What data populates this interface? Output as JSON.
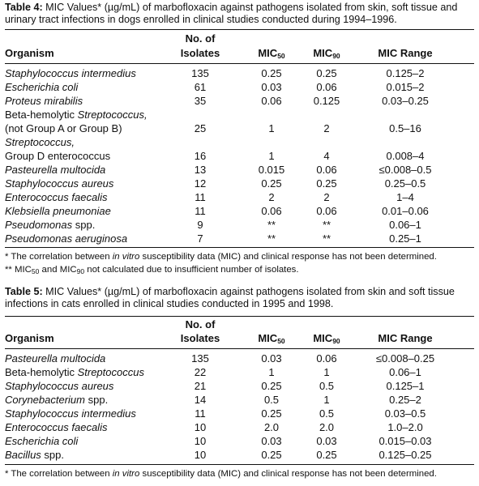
{
  "table4": {
    "label": "Table 4:",
    "caption_text": "MIC Values* (µg/mL) of marbofloxacin against pathogens isolated from skin, soft tissue and urinary tract infections in dogs enrolled in clinical studies conducted during 1994–1996.",
    "headers": {
      "organism": "Organism",
      "isolates_line1": "No. of",
      "isolates_line2": "Isolates",
      "mic": "MIC",
      "mic50_sub": "50",
      "mic90_sub": "90",
      "range": "MIC Range"
    },
    "rows": [
      {
        "organism": "Staphylococcus intermedius",
        "n": "135",
        "mic50": "0.25",
        "mic90": "0.25",
        "range": "0.125–2"
      },
      {
        "organism": "Escherichia coli",
        "n": "61",
        "mic50": "0.03",
        "mic90": "0.06",
        "range": "0.015–2"
      },
      {
        "organism": "Proteus mirabilis",
        "n": "35",
        "mic50": "0.06",
        "mic90": "0.125",
        "range": "0.03–0.25"
      },
      {
        "organism_line1_plain": "Beta-hemolytic ",
        "organism_line1_italic": "Streptococcus,",
        "organism_line2": "(not Group A or Group B)",
        "n": "25",
        "mic50": "1",
        "mic90": "2",
        "range": "0.5–16"
      },
      {
        "organism_line1_italic": "Streptococcus,",
        "organism_line2": "Group D enterococcus",
        "n": "16",
        "mic50": "1",
        "mic90": "4",
        "range": "0.008–4"
      },
      {
        "organism": "Pasteurella multocida",
        "n": "13",
        "mic50": "0.015",
        "mic90": "0.06",
        "range": "≤0.008–0.5"
      },
      {
        "organism": "Staphylococcus aureus",
        "n": "12",
        "mic50": "0.25",
        "mic90": "0.25",
        "range": "0.25–0.5"
      },
      {
        "organism": "Enterococcus faecalis",
        "n": "11",
        "mic50": "2",
        "mic90": "2",
        "range": "1–4"
      },
      {
        "organism": "Klebsiella pneumoniae",
        "n": "11",
        "mic50": "0.06",
        "mic90": "0.06",
        "range": "0.01–0.06"
      },
      {
        "organism_italic": "Pseudomonas",
        "organism_plain": " spp.",
        "n": "9",
        "mic50": "**",
        "mic90": "**",
        "range": "0.06–1"
      },
      {
        "organism": "Pseudomonas aeruginosa",
        "n": "7",
        "mic50": "**",
        "mic90": "**",
        "range": "0.25–1"
      }
    ],
    "note1_pre": "* The correlation between ",
    "note1_italic": "in vitro",
    "note1_post": " susceptibility data (MIC) and clinical response has not been determined.",
    "note2_pre": "** MIC",
    "note2_mid": " and MIC",
    "note2_post": " not calculated due to insufficient number of isolates."
  },
  "table5": {
    "label": "Table 5:",
    "caption_text": "MIC Values* (µg/mL) of marbofloxacin against pathogens isolated from skin and soft tissue infections in cats enrolled in clinical studies conducted in 1995 and 1998.",
    "rows": [
      {
        "organism": "Pasteurella multocida",
        "n": "135",
        "mic50": "0.03",
        "mic90": "0.06",
        "range": "≤0.008–0.25"
      },
      {
        "organism_plain": "Beta-hemolytic ",
        "organism_italic": "Streptococcus",
        "n": "22",
        "mic50": "1",
        "mic90": "1",
        "range": "0.06–1"
      },
      {
        "organism": "Staphylococcus aureus",
        "n": "21",
        "mic50": "0.25",
        "mic90": "0.5",
        "range": "0.125–1"
      },
      {
        "organism_italic": "Corynebacterium",
        "organism_plain": " spp.",
        "n": "14",
        "mic50": "0.5",
        "mic90": "1",
        "range": "0.25–2"
      },
      {
        "organism": "Staphylococcus intermedius",
        "n": "11",
        "mic50": "0.25",
        "mic90": "0.5",
        "range": "0.03–0.5"
      },
      {
        "organism": "Enterococcus faecalis",
        "n": "10",
        "mic50": "2.0",
        "mic90": "2.0",
        "range": "1.0–2.0"
      },
      {
        "organism": "Escherichia coli",
        "n": "10",
        "mic50": "0.03",
        "mic90": "0.03",
        "range": "0.015–0.03"
      },
      {
        "organism_italic": "Bacillus",
        "organism_plain": " spp.",
        "n": "10",
        "mic50": "0.25",
        "mic90": "0.25",
        "range": "0.125–0.25"
      }
    ],
    "note1_pre": "* The correlation between ",
    "note1_italic": "in vitro",
    "note1_post": " susceptibility data (MIC) and clinical response has not been determined."
  }
}
